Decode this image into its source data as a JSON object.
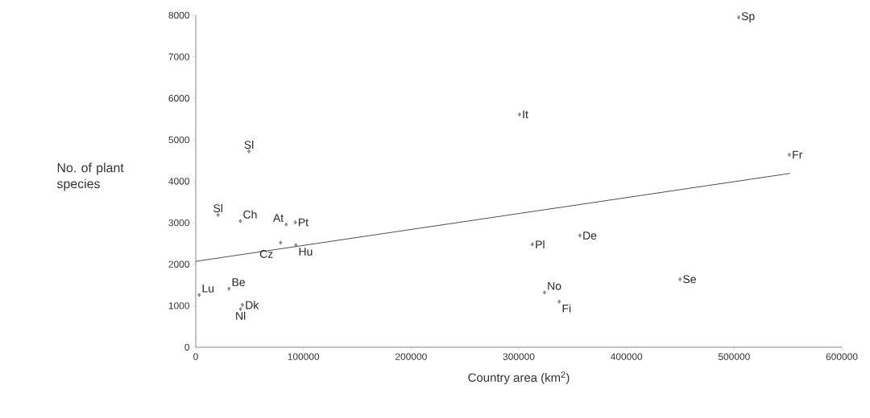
{
  "chart_data": {
    "type": "scatter",
    "xlabel": "Country area (km$^{2}$)",
    "ylabel": "No. of plant species",
    "xlim": [
      0,
      600000
    ],
    "ylim": [
      0,
      8000
    ],
    "xticks": [
      0,
      100000,
      200000,
      300000,
      400000,
      500000,
      600000
    ],
    "yticks": [
      0,
      1000,
      2000,
      3000,
      4000,
      5000,
      6000,
      7000,
      8000
    ],
    "grid": false,
    "marker": "diamond",
    "series": [
      {
        "color": "#555555",
        "x": [
          504200,
          300700,
          551300,
          49400,
          20700,
          41400,
          84000,
          92500,
          78800,
          93000,
          3200,
          30900,
          43400,
          41600,
          312700,
          356800,
          323900,
          337600,
          449800
        ],
        "values": [
          7950,
          5610,
          4640,
          4720,
          3190,
          3040,
          2960,
          3010,
          2520,
          2460,
          1260,
          1410,
          1020,
          920,
          2480,
          2690,
          1320,
          1100,
          1640
        ]
      },
      {
        "type": "line",
        "color": "#222222",
        "marker": "none",
        "x": [
          0,
          552000
        ],
        "values": [
          2070,
          4190
        ]
      }
    ],
    "annotations": [
      {
        "text": "Sp",
        "x": 504200,
        "y": 7950
      },
      {
        "text": "It",
        "x": 300700,
        "y": 5610
      },
      {
        "text": "Fr",
        "x": 551300,
        "y": 4640
      },
      {
        "text": "Sl",
        "x": 49400,
        "y": 4720
      },
      {
        "text": "Sl",
        "x": 20700,
        "y": 3190
      },
      {
        "text": "Ch",
        "x": 41400,
        "y": 3040
      },
      {
        "text": "At",
        "x": 84000,
        "y": 2960
      },
      {
        "text": "Pt",
        "x": 92500,
        "y": 3010
      },
      {
        "text": "Cz",
        "x": 78800,
        "y": 2520
      },
      {
        "text": "Hu",
        "x": 93000,
        "y": 2460
      },
      {
        "text": "Lu",
        "x": 3200,
        "y": 1260
      },
      {
        "text": "Be",
        "x": 30900,
        "y": 1410
      },
      {
        "text": "Dk",
        "x": 43400,
        "y": 1020
      },
      {
        "text": "Nl",
        "x": 41600,
        "y": 920
      },
      {
        "text": "Pl",
        "x": 312700,
        "y": 2480
      },
      {
        "text": "De",
        "x": 356800,
        "y": 2690
      },
      {
        "text": "No",
        "x": 323900,
        "y": 1320
      },
      {
        "text": "Fi",
        "x": 337600,
        "y": 1100
      },
      {
        "text": "Se",
        "x": 449800,
        "y": 1640
      }
    ]
  }
}
